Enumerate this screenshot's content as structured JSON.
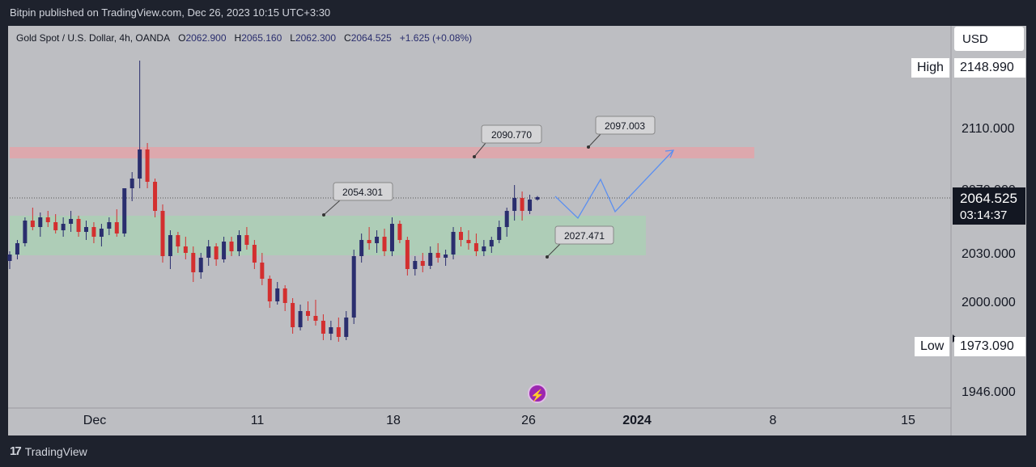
{
  "header": {
    "publisher": "Bitpin published on TradingView.com, Dec 26, 2023 10:15 UTC+3:30"
  },
  "legend": {
    "symbol": "Gold Spot / U.S. Dollar, 4h, OANDA",
    "o_label": "O",
    "o": "2062.900",
    "h_label": "H",
    "h": "2065.160",
    "l_label": "L",
    "l": "2062.300",
    "c_label": "C",
    "c": "2064.525",
    "change": "+1.625 (+0.08%)"
  },
  "currency": "USD",
  "high": {
    "label": "High",
    "value": "2148.990"
  },
  "low": {
    "label": "Low",
    "value": "1973.090"
  },
  "last": {
    "price": "2064.525",
    "countdown": "03:14:37"
  },
  "footer": {
    "brand": "TradingView"
  },
  "colors": {
    "up": "#2a2e6e",
    "down": "#d32f2f",
    "resistance": "#e8a0a6",
    "support": "#a9d2b3",
    "projection": "#5b8ff0"
  },
  "chart_data": {
    "type": "candlestick",
    "title": "Gold Spot / U.S. Dollar, 4h, OANDA",
    "y_ticks": [
      "2110.000",
      "2070.000",
      "2030.000",
      "2000.000",
      "1946.000"
    ],
    "ylim": [
      1930,
      2165
    ],
    "x_ticks": [
      "Dec",
      "11",
      "18",
      "26",
      "2024",
      "8",
      "15"
    ],
    "zones": [
      {
        "name": "resistance",
        "from": 2090.77,
        "to": 2097.0
      },
      {
        "name": "support",
        "from": 2027.471,
        "to": 2054.301
      }
    ],
    "annotations": [
      "2090.770",
      "2097.003",
      "2054.301",
      "2027.471"
    ],
    "candles_ohlc": [
      [
        2025,
        2031,
        2020,
        2029
      ],
      [
        2029,
        2038,
        2026,
        2036
      ],
      [
        2036,
        2052,
        2034,
        2050
      ],
      [
        2050,
        2058,
        2044,
        2046
      ],
      [
        2046,
        2055,
        2040,
        2052
      ],
      [
        2052,
        2056,
        2046,
        2049
      ],
      [
        2049,
        2054,
        2042,
        2044
      ],
      [
        2044,
        2052,
        2040,
        2048
      ],
      [
        2048,
        2056,
        2043,
        2051
      ],
      [
        2051,
        2053,
        2040,
        2043
      ],
      [
        2043,
        2050,
        2038,
        2046
      ],
      [
        2046,
        2049,
        2036,
        2040
      ],
      [
        2040,
        2048,
        2034,
        2045
      ],
      [
        2045,
        2052,
        2041,
        2049
      ],
      [
        2049,
        2057,
        2040,
        2042
      ],
      [
        2042,
        2060,
        2040,
        2070
      ],
      [
        2070,
        2080,
        2062,
        2076
      ],
      [
        2076,
        2148.99,
        2070,
        2094
      ],
      [
        2094,
        2098,
        2070,
        2074
      ],
      [
        2074,
        2076,
        2052,
        2056
      ],
      [
        2056,
        2060,
        2024,
        2028
      ],
      [
        2028,
        2044,
        2020,
        2041
      ],
      [
        2041,
        2043,
        2030,
        2034
      ],
      [
        2034,
        2040,
        2026,
        2030
      ],
      [
        2030,
        2034,
        2012,
        2018
      ],
      [
        2018,
        2030,
        2014,
        2027
      ],
      [
        2027,
        2038,
        2022,
        2034
      ],
      [
        2034,
        2036,
        2022,
        2026
      ],
      [
        2026,
        2040,
        2024,
        2037
      ],
      [
        2037,
        2040,
        2028,
        2031
      ],
      [
        2031,
        2044,
        2028,
        2041
      ],
      [
        2041,
        2046,
        2032,
        2035
      ],
      [
        2035,
        2038,
        2020,
        2024
      ],
      [
        2024,
        2030,
        2010,
        2014
      ],
      [
        2014,
        2016,
        1996,
        2000
      ],
      [
        2000,
        2012,
        1998,
        2008
      ],
      [
        2008,
        2010,
        1994,
        1999
      ],
      [
        1999,
        2002,
        1980,
        1984
      ],
      [
        1984,
        1998,
        1982,
        1994
      ],
      [
        1994,
        2000,
        1988,
        1991
      ],
      [
        1991,
        2001,
        1985,
        1988
      ],
      [
        1988,
        1992,
        1976,
        1980
      ],
      [
        1980,
        1988,
        1976,
        1984
      ],
      [
        1984,
        1990,
        1975,
        1978
      ],
      [
        1978,
        1994,
        1976,
        1990
      ],
      [
        1990,
        2032,
        1986,
        2028
      ],
      [
        2028,
        2042,
        2024,
        2038
      ],
      [
        2038,
        2046,
        2032,
        2036
      ],
      [
        2036,
        2044,
        2030,
        2040
      ],
      [
        2040,
        2045,
        2028,
        2031
      ],
      [
        2031,
        2052,
        2028,
        2048
      ],
      [
        2048,
        2050,
        2036,
        2038
      ],
      [
        2038,
        2040,
        2016,
        2020
      ],
      [
        2020,
        2028,
        2016,
        2025
      ],
      [
        2025,
        2030,
        2018,
        2022
      ],
      [
        2022,
        2034,
        2020,
        2030
      ],
      [
        2030,
        2036,
        2024,
        2027
      ],
      [
        2027,
        2032,
        2022,
        2029
      ],
      [
        2029,
        2046,
        2026,
        2043
      ],
      [
        2043,
        2046,
        2034,
        2038
      ],
      [
        2038,
        2044,
        2032,
        2036
      ],
      [
        2036,
        2042,
        2028,
        2031
      ],
      [
        2031,
        2038,
        2028,
        2034
      ],
      [
        2034,
        2040,
        2030,
        2038
      ],
      [
        2038,
        2050,
        2036,
        2046
      ],
      [
        2046,
        2058,
        2040,
        2056
      ],
      [
        2056,
        2072,
        2050,
        2064
      ],
      [
        2064,
        2068,
        2050,
        2056
      ],
      [
        2056,
        2066,
        2054,
        2063
      ],
      [
        2063,
        2065.16,
        2062.3,
        2064.525
      ]
    ]
  }
}
